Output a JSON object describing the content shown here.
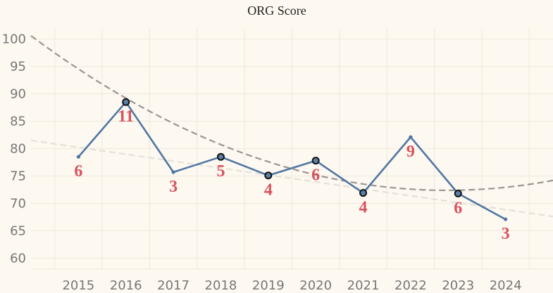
{
  "chart_data": {
    "type": "line",
    "title": "ORG Score",
    "xlabel": "",
    "ylabel": "",
    "x": [
      2015,
      2016,
      2017,
      2018,
      2019,
      2020,
      2021,
      2022,
      2023,
      2024
    ],
    "x_tick_labels": [
      "2015",
      "2016",
      "2017",
      "2018",
      "2019",
      "2020",
      "2021",
      "2022",
      "2023",
      "2024"
    ],
    "y_ticks": [
      60,
      65,
      70,
      75,
      80,
      85,
      90,
      95,
      100
    ],
    "ylim": [
      58,
      102
    ],
    "series": [
      {
        "values": [
          78.5,
          88.5,
          75.7,
          78.5,
          75.1,
          77.8,
          71.9,
          82.1,
          71.8,
          67.1
        ],
        "data_labels": [
          "6",
          "11",
          "3",
          "5",
          "4",
          "6",
          "4",
          "9",
          "6",
          "3"
        ],
        "marked_points": [
          false,
          true,
          false,
          true,
          true,
          true,
          true,
          false,
          true,
          false
        ],
        "color": "#4f77a3",
        "marker_fill": "#5a7fa8",
        "marker_edge": "#111111"
      }
    ],
    "trendlines": [
      {
        "kind": "quadratic",
        "style": "dashed",
        "color": "#9a9690",
        "start": [
          2014,
          100.6
        ],
        "mid": [
          2019,
          77.6
        ],
        "end": [
          2025,
          74.2
        ]
      },
      {
        "kind": "linear",
        "style": "dashed",
        "color": "#e6e1d8",
        "start": [
          2014,
          81.5
        ],
        "end": [
          2025,
          67.6
        ]
      }
    ],
    "label_color": "#d9535d",
    "grid": true,
    "legend": "none"
  }
}
